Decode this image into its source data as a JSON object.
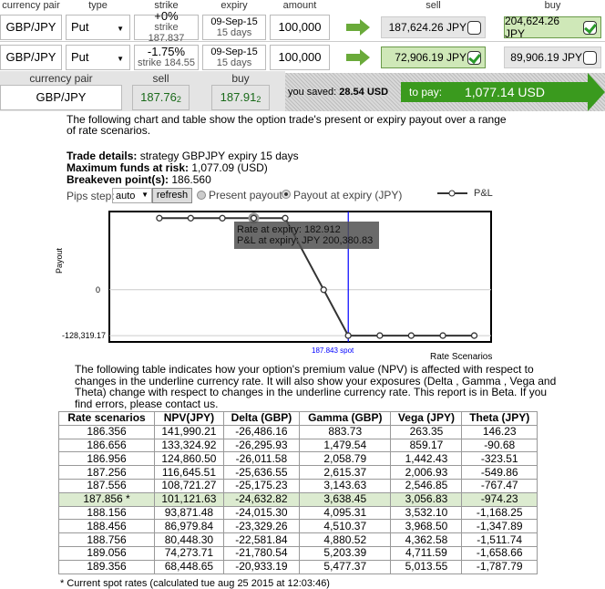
{
  "headers": {
    "pair": "currency pair",
    "type": "type",
    "strike": "strike",
    "expiry": "expiry",
    "amount": "amount",
    "sell": "sell",
    "buy": "buy"
  },
  "legs": [
    {
      "pair": "GBP/JPY",
      "type": "Put",
      "strike_pct": "+0%",
      "strike": "strike 187.837",
      "expiry": "09-Sep-15",
      "days": "15 days",
      "amount": "100,000",
      "sell": "187,624.26 JPY",
      "sell_checked": false,
      "buy": "204,624.26 JPY",
      "buy_checked": true
    },
    {
      "pair": "GBP/JPY",
      "type": "Put",
      "strike_pct": "-1.75%",
      "strike": "strike 184.55",
      "expiry": "09-Sep-15",
      "days": "15 days",
      "amount": "100,000",
      "sell": "72,906.19 JPY",
      "sell_checked": true,
      "buy": "89,906.19 JPY",
      "buy_checked": false
    }
  ],
  "summary": {
    "pair_label": "currency pair",
    "sell_label": "sell",
    "buy_label": "buy",
    "pair": "GBP/JPY",
    "sell_main": "187.76",
    "sell_pip": "2",
    "buy_main": "187.91",
    "buy_pip": "2",
    "saved_label": "you saved:",
    "saved": "28.54 USD",
    "pay_label": "to pay:",
    "pay": "1,077.14 USD"
  },
  "intro": [
    "The following chart and table show the option trade's present or expiry payout over a range",
    "of rate scenarios."
  ],
  "details": {
    "trade_label": "Trade details:",
    "trade": " strategy GBPJPY expiry 15 days",
    "risk_label": "Maximum funds at risk:",
    "risk": " 1,077.09 (USD)",
    "be_label": "Breakeven point(s):",
    "be": " 186.560"
  },
  "controls": {
    "pips_label": "Pips step:",
    "pips_value": "auto",
    "refresh": "refresh",
    "present": "Present payout",
    "expiry": "Payout at expiry (JPY)",
    "mode": "expiry"
  },
  "colors": {
    "green": "#3a9a1e",
    "arrow": "#6aaa3a",
    "spot": "#0000ff"
  },
  "chart_data": {
    "type": "line",
    "ylabel": "Payout",
    "xlabel": "Rate Scenarios",
    "legend": "P&L",
    "legend_position": "top-right",
    "x": [
      177.98,
      179.62,
      181.27,
      182.91,
      184.55,
      186.56,
      187.84,
      189.49,
      191.13,
      192.78,
      194.42
    ],
    "values": [
      200380.83,
      200380.83,
      200380.83,
      200380.83,
      200380.83,
      0,
      -128319.17,
      -128319.17,
      -128319.17,
      -128319.17,
      -128319.17
    ],
    "yticks": [
      "0",
      "-128,319.17"
    ],
    "spot_label": "187.843 spot",
    "spot": 187.843,
    "tooltip": [
      "Rate at expiry: 182.912",
      "P&L at expiry: JPY 200,380.83"
    ],
    "ylim": [
      -146000,
      219000
    ]
  },
  "table_intro": [
    "The following table indicates how your option's premium value (NPV) is affected with respect to",
    "changes in the underline currency rate. It will also show your exposures (Delta , Gamma , Vega and",
    "Theta) change with respect to changes in the underline currency rate. This report is in Beta. If you",
    "find errors, please contact us."
  ],
  "table": {
    "columns": [
      "Rate scenarios",
      "NPV(JPY)",
      "Delta (GBP)",
      "Gamma (GBP)",
      "Vega (JPY)",
      "Theta (JPY)"
    ],
    "rows": [
      [
        "186.356",
        "141,990.21",
        "-26,486.16",
        "883.73",
        "263.35",
        "146.23"
      ],
      [
        "186.656",
        "133,324.92",
        "-26,295.93",
        "1,479.54",
        "859.17",
        "-90.68"
      ],
      [
        "186.956",
        "124,860.50",
        "-26,011.58",
        "2,058.79",
        "1,442.43",
        "-323.51"
      ],
      [
        "187.256",
        "116,645.51",
        "-25,636.55",
        "2,615.37",
        "2,006.93",
        "-549.86"
      ],
      [
        "187.556",
        "108,721.27",
        "-25,175.23",
        "3,143.63",
        "2,546.85",
        "-767.47"
      ],
      [
        "187.856 *",
        "101,121.63",
        "-24,632.82",
        "3,638.45",
        "3,056.83",
        "-974.23"
      ],
      [
        "188.156",
        "93,871.48",
        "-24,015.30",
        "4,095.31",
        "3,532.10",
        "-1,168.25"
      ],
      [
        "188.456",
        "86,979.84",
        "-23,329.26",
        "4,510.37",
        "3,968.50",
        "-1,347.89"
      ],
      [
        "188.756",
        "80,448.30",
        "-22,581.84",
        "4,880.52",
        "4,362.58",
        "-1,511.74"
      ],
      [
        "189.056",
        "74,273.71",
        "-21,780.54",
        "5,203.39",
        "4,711.59",
        "-1,658.66"
      ],
      [
        "189.356",
        "68,448.65",
        "-20,933.19",
        "5,477.37",
        "5,013.55",
        "-1,787.79"
      ]
    ],
    "spot_row": 5
  },
  "footnote": "* Current spot rates (calculated tue aug 25 2015 at 12:03:46)"
}
